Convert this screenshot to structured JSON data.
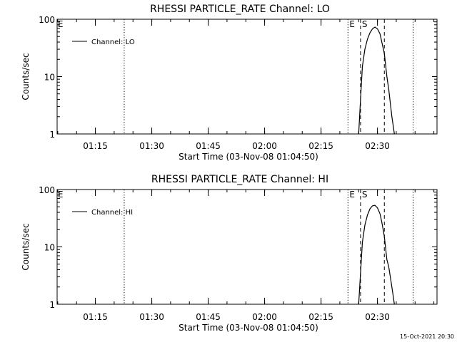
{
  "footer": {
    "timestamp": "15-Oct-2021 20:30"
  },
  "chart_data": [
    {
      "type": "line",
      "title": "RHESSI PARTICLE_RATE Channel: LO",
      "xlabel": "Start Time (03-Nov-08 01:04:50)",
      "ylabel": "Counts/sec",
      "yscale": "log",
      "ylim": [
        1,
        100
      ],
      "xlim": [
        "01:04:50",
        "02:45:50"
      ],
      "x_ticks": [
        "01:15",
        "01:30",
        "01:45",
        "02:00",
        "02:15",
        "02:30"
      ],
      "y_ticks": [
        "1",
        "10",
        "100"
      ],
      "legend": {
        "position": "top-left",
        "entries": [
          "Channel: LO"
        ]
      },
      "markers": [
        {
          "label": "E",
          "time": "01:05:00",
          "style": "none"
        },
        {
          "label": "",
          "time": "01:22:40",
          "style": "dotted"
        },
        {
          "label": "E",
          "time": "02:22:10",
          "style": "dotted"
        },
        {
          "label": "S",
          "time": "02:25:30",
          "style": "dashed"
        },
        {
          "label": "",
          "time": "02:31:50",
          "style": "dashed"
        },
        {
          "label": "",
          "time": "02:39:30",
          "style": "dotted"
        }
      ],
      "series": [
        {
          "name": "Channel: LO",
          "x": [
            "02:25:00",
            "02:25:30",
            "02:26:00",
            "02:26:40",
            "02:27:20",
            "02:28:00",
            "02:28:40",
            "02:29:20",
            "02:30:00",
            "02:30:40",
            "02:31:10",
            "02:31:50",
            "02:32:30",
            "02:33:00",
            "02:33:50",
            "02:34:30"
          ],
          "values": [
            1,
            4,
            15,
            30,
            45,
            58,
            68,
            73,
            68,
            56,
            40,
            25,
            10,
            6,
            2,
            1
          ]
        }
      ]
    },
    {
      "type": "line",
      "title": "RHESSI PARTICLE_RATE Channel: HI",
      "xlabel": "Start Time (03-Nov-08 01:04:50)",
      "ylabel": "Counts/sec",
      "yscale": "log",
      "ylim": [
        1,
        100
      ],
      "xlim": [
        "01:04:50",
        "02:45:50"
      ],
      "x_ticks": [
        "01:15",
        "01:30",
        "01:45",
        "02:00",
        "02:15",
        "02:30"
      ],
      "y_ticks": [
        "1",
        "10",
        "100"
      ],
      "legend": {
        "position": "top-left",
        "entries": [
          "Channel: HI"
        ]
      },
      "markers": [
        {
          "label": "E",
          "time": "01:05:00",
          "style": "none"
        },
        {
          "label": "",
          "time": "01:22:40",
          "style": "dotted"
        },
        {
          "label": "E",
          "time": "02:22:10",
          "style": "dotted"
        },
        {
          "label": "S",
          "time": "02:25:30",
          "style": "dashed"
        },
        {
          "label": "",
          "time": "02:31:50",
          "style": "dashed"
        },
        {
          "label": "",
          "time": "02:39:30",
          "style": "dotted"
        }
      ],
      "series": [
        {
          "name": "Channel: HI",
          "x": [
            "02:25:00",
            "02:25:30",
            "02:26:00",
            "02:26:40",
            "02:27:20",
            "02:28:00",
            "02:28:40",
            "02:29:20",
            "02:30:00",
            "02:30:40",
            "02:31:10",
            "02:31:50",
            "02:32:30",
            "02:33:00",
            "02:33:50",
            "02:34:30"
          ],
          "values": [
            1,
            3.5,
            12,
            24,
            36,
            46,
            52,
            53,
            48,
            38,
            27,
            15,
            6,
            4.5,
            2,
            1
          ]
        }
      ]
    }
  ]
}
